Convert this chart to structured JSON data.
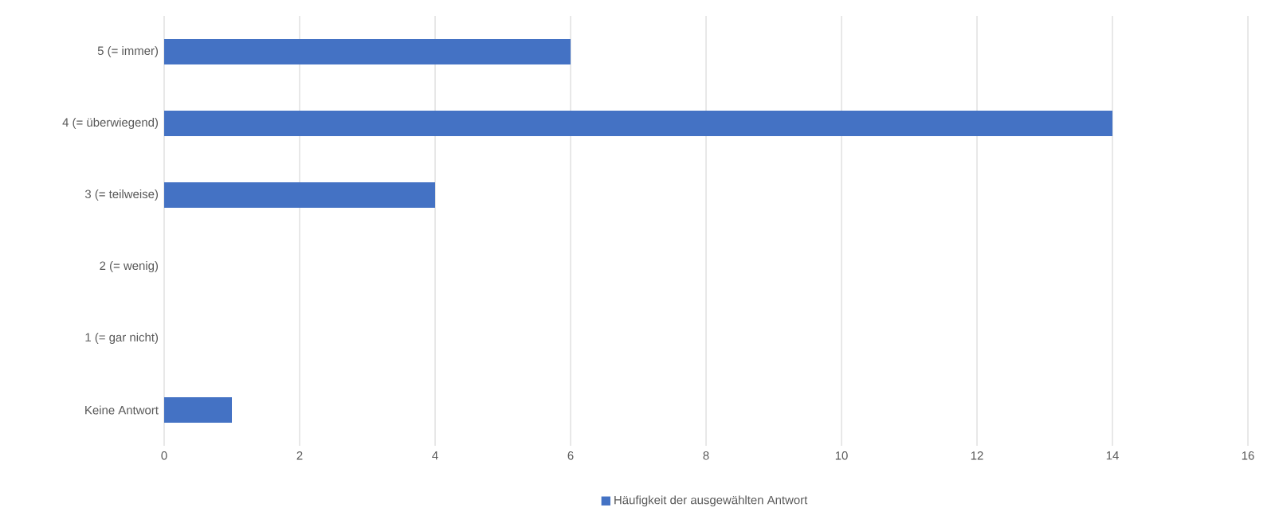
{
  "chart_data": {
    "type": "bar",
    "orientation": "horizontal",
    "categories": [
      "5 (= immer)",
      "4 (= überwiegend)",
      "3 (= teilweise)",
      "2 (= wenig)",
      "1 (= gar nicht)",
      "Keine Antwort"
    ],
    "series": [
      {
        "name": "Häufigkeit der ausgewählten Antwort",
        "color": "#4472c4",
        "values": [
          6,
          14,
          4,
          0,
          0,
          1
        ]
      }
    ],
    "xlim": [
      0,
      16
    ],
    "xticks": [
      0,
      2,
      4,
      6,
      8,
      10,
      12,
      14,
      16
    ],
    "grid": "x",
    "legend": "bottom"
  }
}
